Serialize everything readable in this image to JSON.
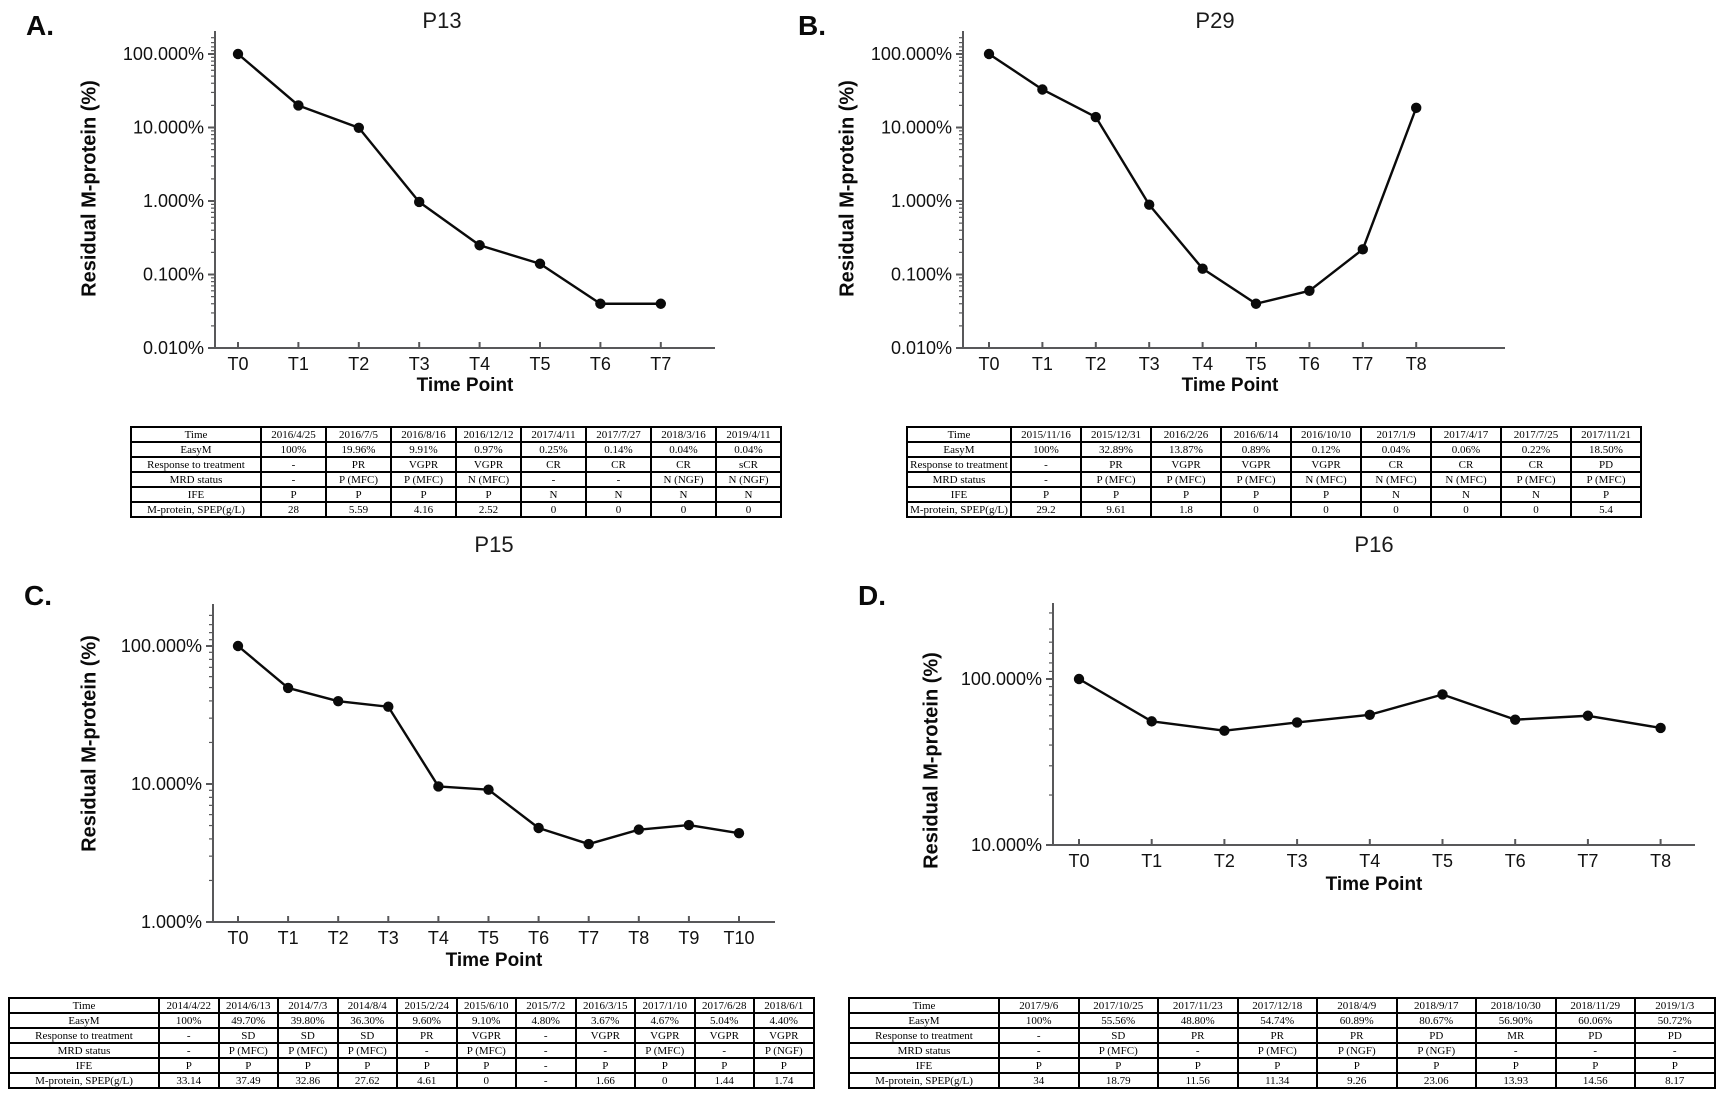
{
  "chart_data": [
    {
      "panel_letter": "A.",
      "title": "P13",
      "type": "line",
      "xlabel": "Time Point",
      "ylabel": "Residual M-protein (%)",
      "y_scale": "log",
      "y_range_percent": [
        0.01,
        100
      ],
      "y_tick_labels": [
        "100.000%",
        "10.000%",
        "1.000%",
        "0.100%",
        "0.010%"
      ],
      "x_categories": [
        "T0",
        "T1",
        "T2",
        "T3",
        "T4",
        "T5",
        "T6",
        "T7"
      ],
      "values_percent": [
        100,
        19.96,
        9.91,
        0.97,
        0.25,
        0.14,
        0.04,
        0.04
      ],
      "table": {
        "rows": [
          {
            "label": "Time",
            "cells": [
              "2016/4/25",
              "2016/7/5",
              "2016/8/16",
              "2016/12/12",
              "2017/4/11",
              "2017/7/27",
              "2018/3/16",
              "2019/4/11"
            ]
          },
          {
            "label": "EasyM",
            "cells": [
              "100%",
              "19.96%",
              "9.91%",
              "0.97%",
              "0.25%",
              "0.14%",
              "0.04%",
              "0.04%"
            ]
          },
          {
            "label": "Response to treatment",
            "cells": [
              "-",
              "PR",
              "VGPR",
              "VGPR",
              "CR",
              "CR",
              "CR",
              "sCR"
            ]
          },
          {
            "label": "MRD status",
            "cells": [
              "-",
              "P (MFC)",
              "P (MFC)",
              "N (MFC)",
              "-",
              "-",
              "N (NGF)",
              "N (NGF)"
            ]
          },
          {
            "label": "IFE",
            "cells": [
              "P",
              "P",
              "P",
              "P",
              "N",
              "N",
              "N",
              "N"
            ]
          },
          {
            "label": "M-protein, SPEP(g/L)",
            "cells": [
              "28",
              "5.59",
              "4.16",
              "2.52",
              "0",
              "0",
              "0",
              "0"
            ]
          }
        ]
      }
    },
    {
      "panel_letter": "B.",
      "title": "P29",
      "type": "line",
      "xlabel": "Time Point",
      "ylabel": "Residual M-protein (%)",
      "y_scale": "log",
      "y_range_percent": [
        0.01,
        100
      ],
      "y_tick_labels": [
        "100.000%",
        "10.000%",
        "1.000%",
        "0.100%",
        "0.010%"
      ],
      "x_categories": [
        "T0",
        "T1",
        "T2",
        "T3",
        "T4",
        "T5",
        "T6",
        "T7",
        "T8"
      ],
      "values_percent": [
        100,
        32.89,
        13.87,
        0.89,
        0.12,
        0.04,
        0.06,
        0.22,
        18.5
      ],
      "table": {
        "rows": [
          {
            "label": "Time",
            "cells": [
              "2015/11/16",
              "2015/12/31",
              "2016/2/26",
              "2016/6/14",
              "2016/10/10",
              "2017/1/9",
              "2017/4/17",
              "2017/7/25",
              "2017/11/21"
            ]
          },
          {
            "label": "EasyM",
            "cells": [
              "100%",
              "32.89%",
              "13.87%",
              "0.89%",
              "0.12%",
              "0.04%",
              "0.06%",
              "0.22%",
              "18.50%"
            ]
          },
          {
            "label": "Response to treatment",
            "cells": [
              "-",
              "PR",
              "VGPR",
              "VGPR",
              "VGPR",
              "CR",
              "CR",
              "CR",
              "PD"
            ]
          },
          {
            "label": "MRD status",
            "cells": [
              "-",
              "P (MFC)",
              "P (MFC)",
              "P (MFC)",
              "N (MFC)",
              "N (MFC)",
              "N (MFC)",
              "P (MFC)",
              "P (MFC)"
            ]
          },
          {
            "label": "IFE",
            "cells": [
              "P",
              "P",
              "P",
              "P",
              "P",
              "N",
              "N",
              "N",
              "P"
            ]
          },
          {
            "label": "M-protein, SPEP(g/L)",
            "cells": [
              "29.2",
              "9.61",
              "1.8",
              "0",
              "0",
              "0",
              "0",
              "0",
              "5.4"
            ]
          }
        ]
      }
    },
    {
      "panel_letter": "C.",
      "title": "P15",
      "type": "line",
      "xlabel": "Time Point",
      "ylabel": "Residual M-protein (%)",
      "y_scale": "log",
      "y_range_percent": [
        1,
        100
      ],
      "y_tick_labels": [
        "100.000%",
        "10.000%",
        "1.000%"
      ],
      "x_categories": [
        "T0",
        "T1",
        "T2",
        "T3",
        "T4",
        "T5",
        "T6",
        "T7",
        "T8",
        "T9",
        "T10"
      ],
      "values_percent": [
        100,
        49.7,
        39.8,
        36.3,
        9.6,
        9.1,
        4.8,
        3.67,
        4.67,
        5.04,
        4.4
      ],
      "table": {
        "rows": [
          {
            "label": "Time",
            "cells": [
              "2014/4/22",
              "2014/6/13",
              "2014/7/3",
              "2014/8/4",
              "2015/2/24",
              "2015/6/10",
              "2015/7/2",
              "2016/3/15",
              "2017/1/10",
              "2017/6/28",
              "2018/6/1"
            ]
          },
          {
            "label": "EasyM",
            "cells": [
              "100%",
              "49.70%",
              "39.80%",
              "36.30%",
              "9.60%",
              "9.10%",
              "4.80%",
              "3.67%",
              "4.67%",
              "5.04%",
              "4.40%"
            ]
          },
          {
            "label": "Response to treatment",
            "cells": [
              "-",
              "SD",
              "SD",
              "SD",
              "PR",
              "VGPR",
              "-",
              "VGPR",
              "VGPR",
              "VGPR",
              "VGPR"
            ]
          },
          {
            "label": "MRD status",
            "cells": [
              "-",
              "P (MFC)",
              "P (MFC)",
              "P (MFC)",
              "-",
              "P (MFC)",
              "-",
              "-",
              "P (MFC)",
              "-",
              "P (NGF)"
            ]
          },
          {
            "label": "IFE",
            "cells": [
              "P",
              "P",
              "P",
              "P",
              "P",
              "P",
              "-",
              "P",
              "P",
              "P",
              "P"
            ]
          },
          {
            "label": "M-protein, SPEP(g/L)",
            "cells": [
              "33.14",
              "37.49",
              "32.86",
              "27.62",
              "4.61",
              "0",
              "-",
              "1.66",
              "0",
              "1.44",
              "1.74"
            ]
          }
        ]
      }
    },
    {
      "panel_letter": "D.",
      "title": "P16",
      "type": "line",
      "xlabel": "Time Point",
      "ylabel": "Residual M-protein (%)",
      "y_scale": "log",
      "y_range_percent": [
        10,
        100
      ],
      "y_tick_labels": [
        "100.000%",
        "10.000%"
      ],
      "x_categories": [
        "T0",
        "T1",
        "T2",
        "T3",
        "T4",
        "T5",
        "T6",
        "T7",
        "T8"
      ],
      "values_percent": [
        100,
        55.56,
        48.8,
        54.74,
        60.89,
        80.67,
        56.9,
        60.06,
        50.72
      ],
      "table": {
        "rows": [
          {
            "label": "Time",
            "cells": [
              "2017/9/6",
              "2017/10/25",
              "2017/11/23",
              "2017/12/18",
              "2018/4/9",
              "2018/9/17",
              "2018/10/30",
              "2018/11/29",
              "2019/1/3"
            ]
          },
          {
            "label": "EasyM",
            "cells": [
              "100%",
              "55.56%",
              "48.80%",
              "54.74%",
              "60.89%",
              "80.67%",
              "56.90%",
              "60.06%",
              "50.72%"
            ]
          },
          {
            "label": "Response to treatment",
            "cells": [
              "-",
              "SD",
              "PR",
              "PR",
              "PR",
              "PD",
              "MR",
              "PD",
              "PD"
            ]
          },
          {
            "label": "MRD status",
            "cells": [
              "-",
              "P (MFC)",
              "-",
              "P (MFC)",
              "P (NGF)",
              "P (NGF)",
              "-",
              "-",
              "-"
            ]
          },
          {
            "label": "IFE",
            "cells": [
              "P",
              "P",
              "P",
              "P",
              "P",
              "P",
              "P",
              "P",
              "P"
            ]
          },
          {
            "label": "M-protein, SPEP(g/L)",
            "cells": [
              "34",
              "18.79",
              "11.56",
              "11.34",
              "9.26",
              "23.06",
              "13.93",
              "14.56",
              "8.17"
            ]
          }
        ]
      }
    }
  ],
  "style": {
    "line_color": "#0a0a0a",
    "marker_color": "#0a0a0a",
    "axis_color": "#58585a",
    "text_color": "#111111"
  }
}
